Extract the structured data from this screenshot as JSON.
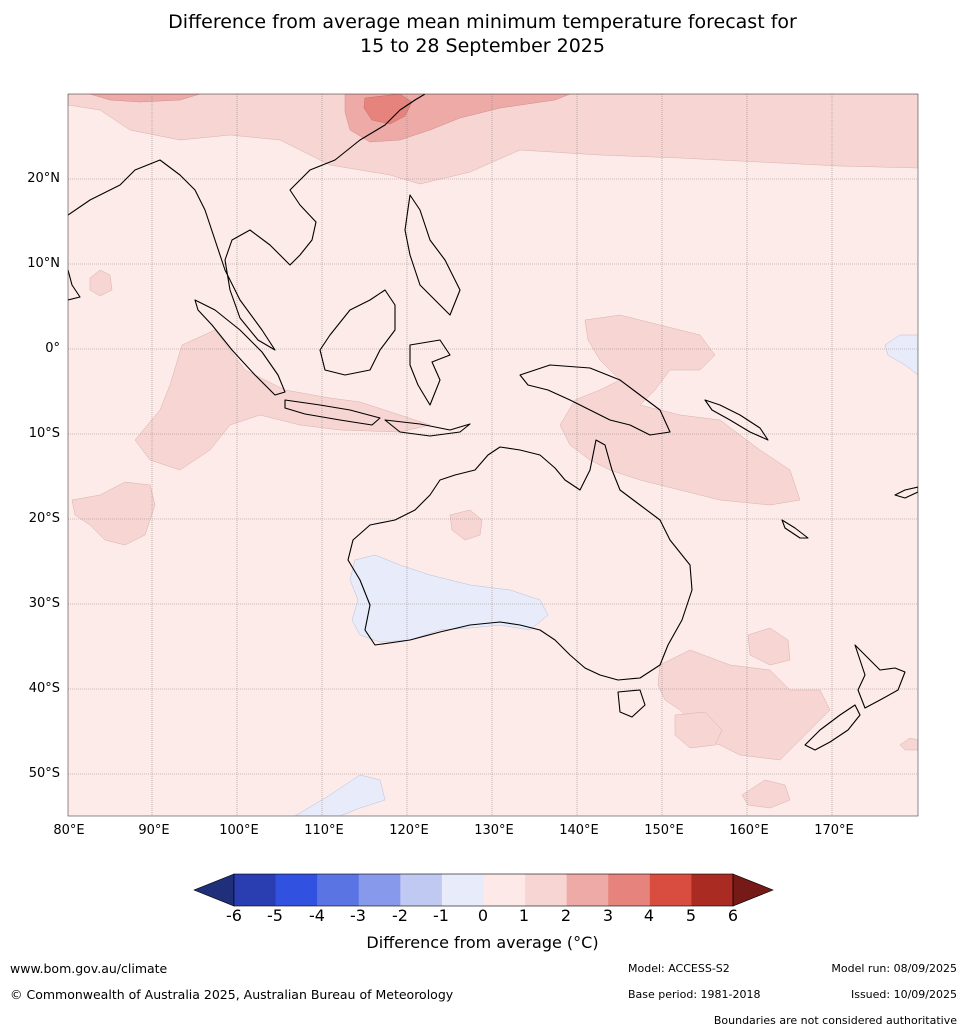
{
  "title": {
    "line1": "Difference from average mean minimum temperature forecast for",
    "line2": "15 to 28 September 2025"
  },
  "map": {
    "lon_range": [
      80,
      180
    ],
    "lat_range": [
      -55,
      30
    ],
    "lat_labels": [
      "20°N",
      "10°N",
      "0°",
      "10°S",
      "20°S",
      "30°S",
      "40°S",
      "50°S"
    ],
    "lon_labels": [
      "80°E",
      "90°E",
      "100°E",
      "110°E",
      "120°E",
      "130°E",
      "140°E",
      "150°E",
      "160°E",
      "170°E"
    ],
    "background_category": "0 to 1",
    "regions": [
      {
        "category": "1 to 2",
        "description": "warmer band across southern China and the north Pacific"
      },
      {
        "category": "2 to 3",
        "description": "south-east China coast"
      },
      {
        "category": "3 to 4",
        "description": "near Taiwan strait"
      },
      {
        "category": "1 to 2",
        "description": "Indian Ocean west of Sumatra and Java"
      },
      {
        "category": "1 to 2",
        "description": "Coral Sea and northern Queensland"
      },
      {
        "category": "1 to 2",
        "description": "Tasman Sea"
      },
      {
        "category": "-1 to 0",
        "description": "south-western Western Australia"
      },
      {
        "category": "-1 to 0",
        "description": "central Pacific near the equator"
      }
    ]
  },
  "colorbar": {
    "ticks": [
      "-6",
      "-5",
      "-4",
      "-3",
      "-2",
      "-1",
      "0",
      "1",
      "2",
      "3",
      "4",
      "5",
      "6"
    ],
    "colors": [
      "#1f2f7a",
      "#2a3eb2",
      "#3151e0",
      "#5b74e4",
      "#8799ea",
      "#c0c9f2",
      "#e8ecfa",
      "#fce9e8",
      "#f6d5d3",
      "#edaaa6",
      "#e6837c",
      "#d94c40",
      "#a92b22",
      "#751a17"
    ],
    "title": "Difference from average (°C)"
  },
  "footer": {
    "url": "www.bom.gov.au/climate",
    "copyright": "© Commonwealth of Australia 2025, Australian Bureau of Meteorology",
    "model": "Model: ACCESS-S2",
    "base_period": "Base period: 1981-2018",
    "model_run": "Model run: 08/09/2025",
    "issued": "Issued: 10/09/2025",
    "disclaimer": "Boundaries are not considered authoritative"
  }
}
